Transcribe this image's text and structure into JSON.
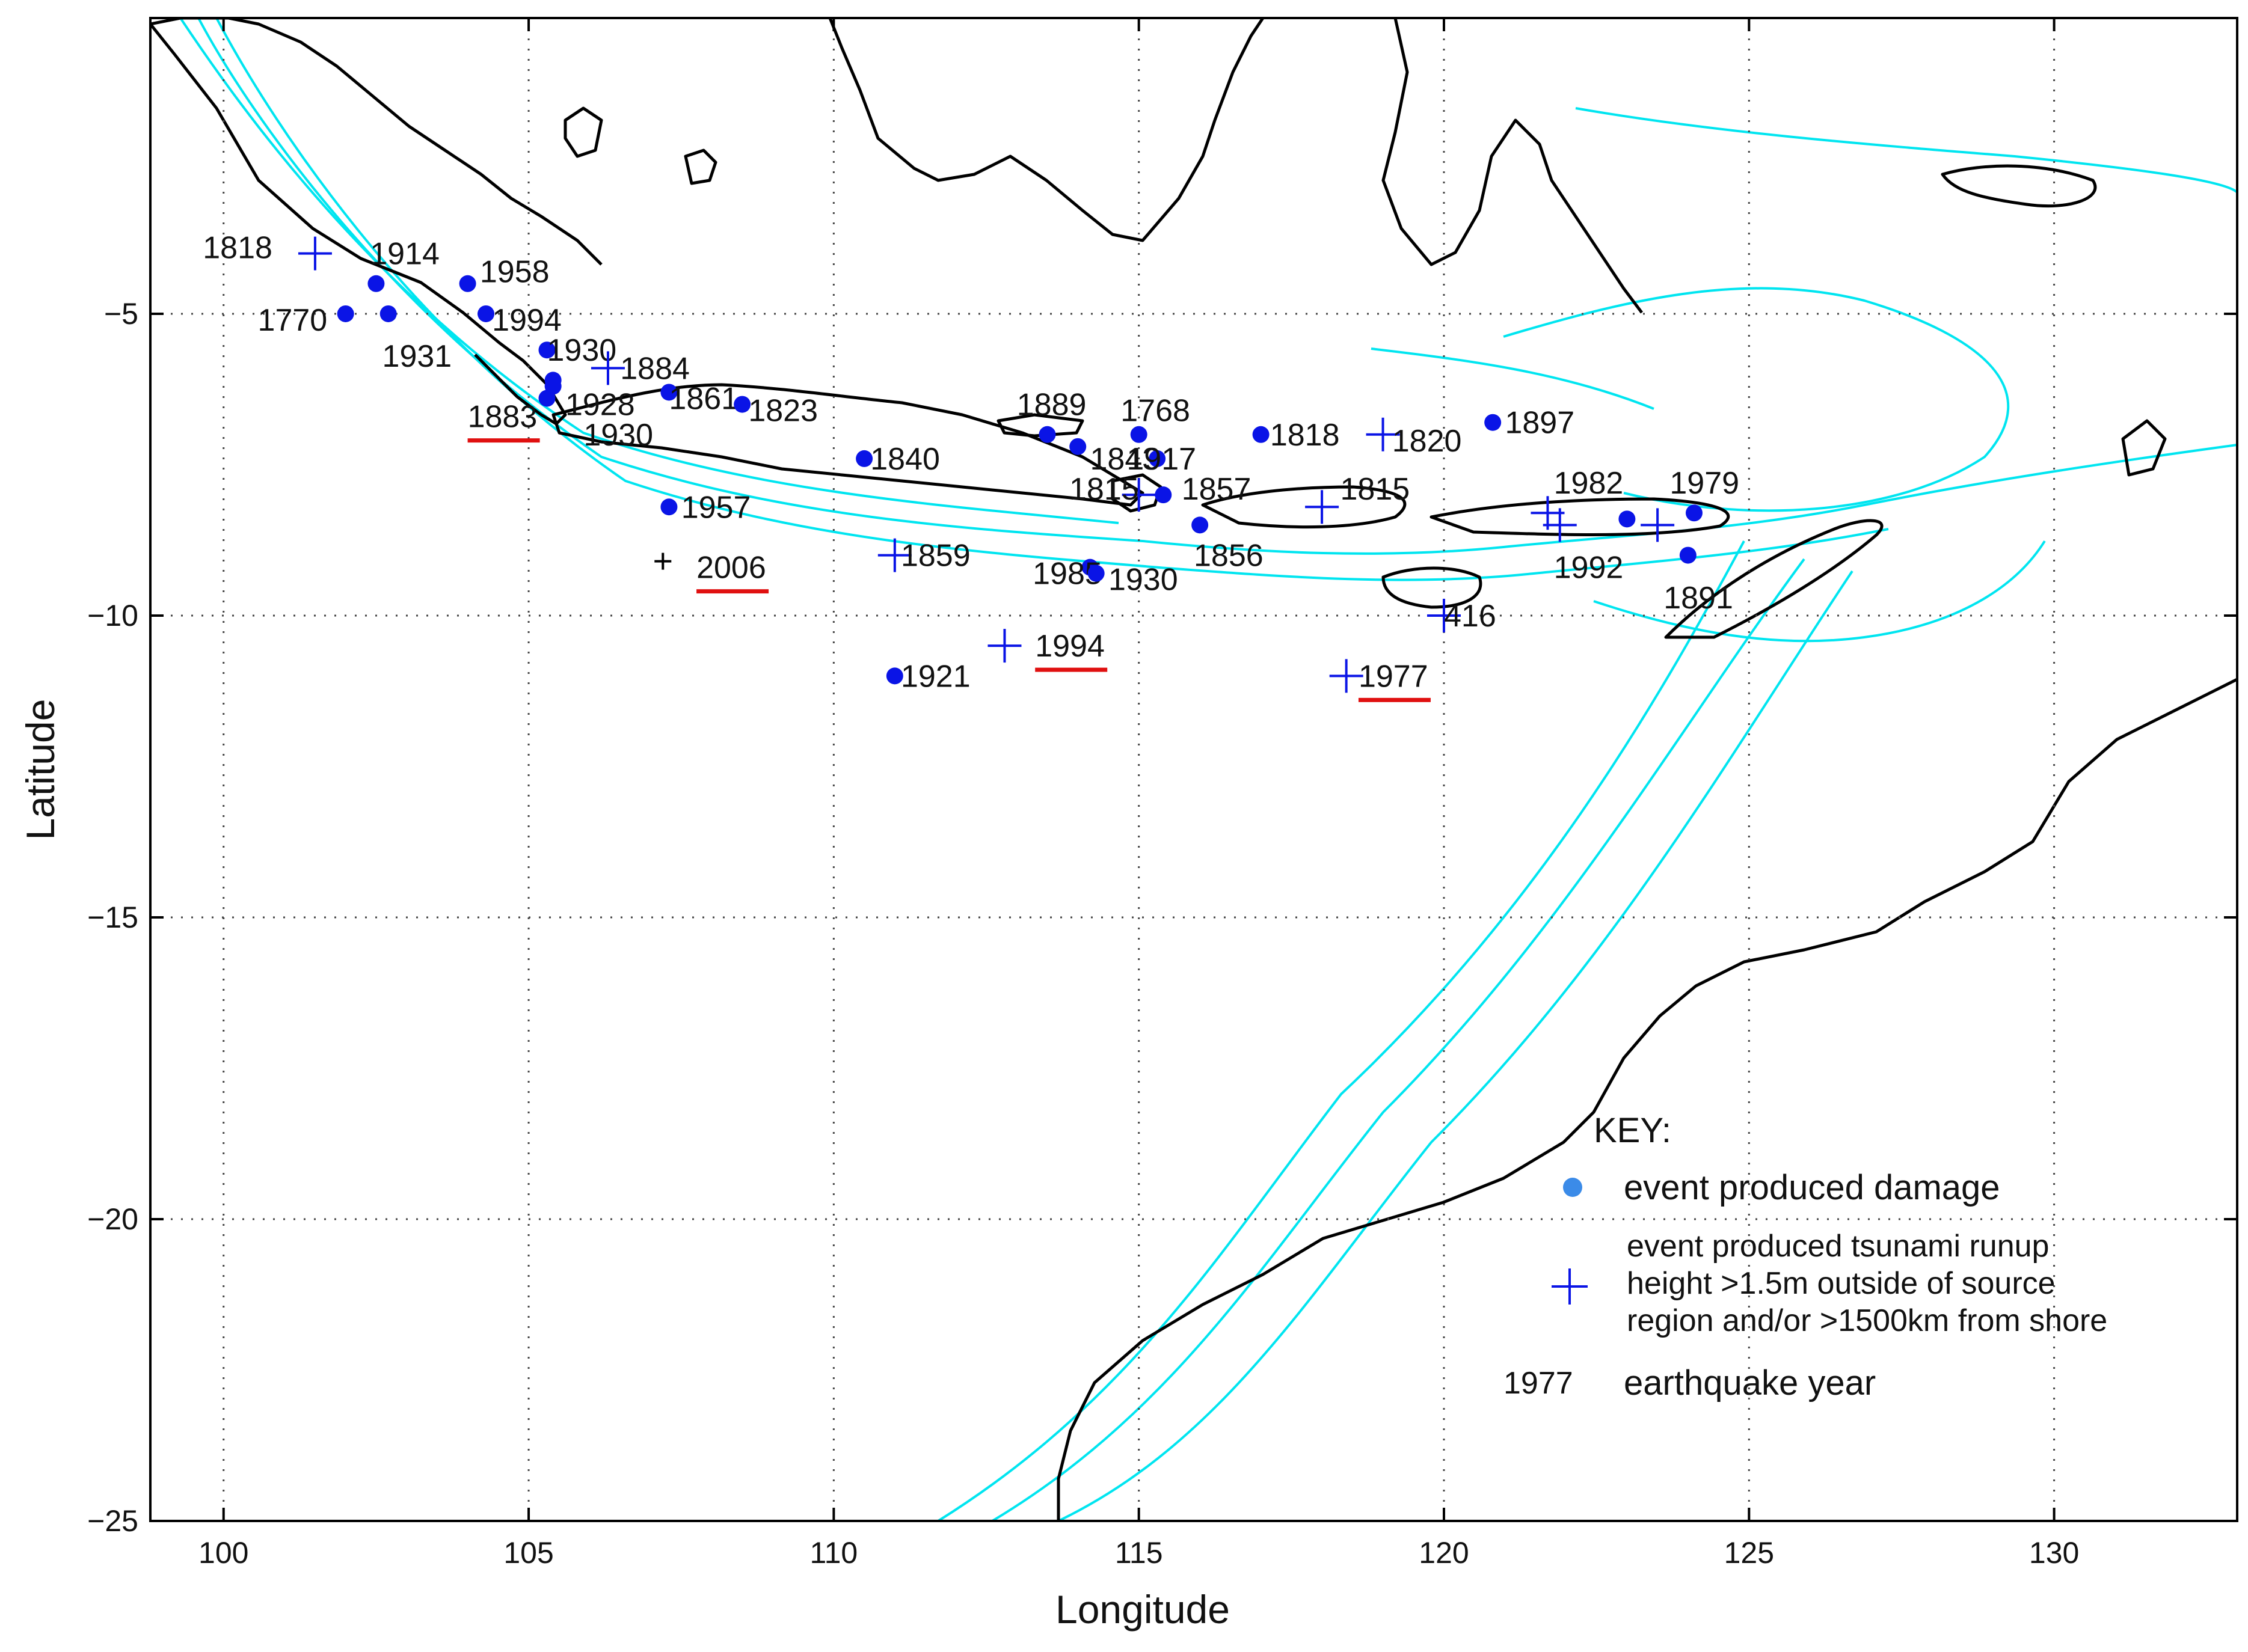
{
  "map": {
    "xlabel": "Longitude",
    "ylabel": "Latitude",
    "xlim": [
      98.8,
      133
    ],
    "ylim": [
      -25,
      -0.1
    ],
    "x_ticks": [
      100,
      105,
      110,
      115,
      120,
      125,
      130
    ],
    "y_ticks": [
      -5,
      -10,
      -15,
      -20,
      -25
    ],
    "x_tick_labels": [
      "100",
      "105",
      "110",
      "115",
      "120",
      "125",
      "130"
    ],
    "y_tick_labels": [
      "−5",
      "−10",
      "−15",
      "−20",
      "−25"
    ],
    "grid": true,
    "colors": {
      "coast": "#000000",
      "bathymetry": "#00e5f0",
      "event": "#0a14e6",
      "underline": "#e01010",
      "key_dot": "#3b8be8",
      "grid": "#444444"
    }
  },
  "events": [
    {
      "year": "1818",
      "lon": 101.5,
      "lat": -4.0,
      "type": "cross",
      "lx": 100.8,
      "ly": -3.9,
      "anchor": "end"
    },
    {
      "year": "1914",
      "lon": 102.5,
      "lat": -4.5,
      "type": "dot",
      "lx": 102.4,
      "ly": -4.0,
      "anchor": "start"
    },
    {
      "year": "1770",
      "lon": 102.0,
      "lat": -5.0,
      "type": "dot",
      "lx": 101.7,
      "ly": -5.1,
      "anchor": "end"
    },
    {
      "year": "1931",
      "lon": 102.7,
      "lat": -5.0,
      "type": "dot",
      "lx": 102.6,
      "ly": -5.7,
      "anchor": "start"
    },
    {
      "year": "1958",
      "lon": 104.0,
      "lat": -4.5,
      "type": "dot",
      "lx": 104.2,
      "ly": -4.3,
      "anchor": "start"
    },
    {
      "year": "1994",
      "lon": 104.3,
      "lat": -5.0,
      "type": "dot",
      "lx": 104.4,
      "ly": -5.1,
      "anchor": "start"
    },
    {
      "year": "1930",
      "lon": 105.3,
      "lat": -5.6,
      "type": "dot",
      "lx": 105.3,
      "ly": -5.6,
      "anchor": "start"
    },
    {
      "year": "1884",
      "lon": 106.3,
      "lat": -5.9,
      "type": "cross",
      "lx": 106.5,
      "ly": -5.9,
      "anchor": "start"
    },
    {
      "year": "1928",
      "lon": 105.4,
      "lat": -6.1,
      "type": "dot",
      "lx": 105.6,
      "ly": -6.5,
      "anchor": "start"
    },
    {
      "year": "1883",
      "lon": 105.4,
      "lat": -6.2,
      "type": "dot",
      "lx": 104.0,
      "ly": -6.7,
      "anchor": "start",
      "underline": true
    },
    {
      "year": "1930",
      "lon": 105.3,
      "lat": -6.4,
      "type": "dot",
      "lx": 105.9,
      "ly": -7.0,
      "anchor": "start"
    },
    {
      "year": "1861",
      "lon": 107.3,
      "lat": -6.3,
      "type": "dot",
      "lx": 107.3,
      "ly": -6.4,
      "anchor": "start"
    },
    {
      "year": "1823",
      "lon": 108.5,
      "lat": -6.5,
      "type": "dot",
      "lx": 108.6,
      "ly": -6.6,
      "anchor": "start"
    },
    {
      "year": "1957",
      "lon": 107.3,
      "lat": -8.2,
      "type": "dot",
      "lx": 107.5,
      "ly": -8.2,
      "anchor": "start"
    },
    {
      "year": "2006",
      "lon": 107.2,
      "lat": -9.1,
      "type": "plus",
      "lx": 107.75,
      "ly": -9.2,
      "anchor": "start",
      "underline": true
    },
    {
      "year": "1840",
      "lon": 110.5,
      "lat": -7.4,
      "type": "dot",
      "lx": 110.6,
      "ly": -7.4,
      "anchor": "start"
    },
    {
      "year": "1859",
      "lon": 111.0,
      "lat": -9.0,
      "type": "cross",
      "lx": 111.1,
      "ly": -9.0,
      "anchor": "start"
    },
    {
      "year": "1921",
      "lon": 111.0,
      "lat": -11.0,
      "type": "dot",
      "lx": 111.1,
      "ly": -11.0,
      "anchor": "start"
    },
    {
      "year": "1994",
      "lon": 112.8,
      "lat": -10.5,
      "type": "cross",
      "lx": 113.3,
      "ly": -10.5,
      "anchor": "start",
      "underline": true
    },
    {
      "year": "1889",
      "lon": 113.5,
      "lat": -7.0,
      "type": "dot",
      "lx": 113.0,
      "ly": -6.5,
      "anchor": "start"
    },
    {
      "year": "1843",
      "lon": 114.0,
      "lat": -7.2,
      "type": "dot",
      "lx": 114.2,
      "ly": -7.4,
      "anchor": "start"
    },
    {
      "year": "1768",
      "lon": 115.0,
      "lat": -7.0,
      "type": "dot",
      "lx": 114.7,
      "ly": -6.6,
      "anchor": "start"
    },
    {
      "year": "1917",
      "lon": 115.3,
      "lat": -7.4,
      "type": "dot",
      "lx": 114.8,
      "ly": -7.4,
      "anchor": "start"
    },
    {
      "year": "1815",
      "lon": 115.0,
      "lat": -8.0,
      "type": "cross",
      "lx": 115.0,
      "ly": -7.9,
      "anchor": "end"
    },
    {
      "year": "1857",
      "lon": 115.4,
      "lat": -8.0,
      "type": "dot",
      "lx": 115.7,
      "ly": -7.9,
      "anchor": "start"
    },
    {
      "year": "1856",
      "lon": 116.0,
      "lat": -8.5,
      "type": "dot",
      "lx": 115.9,
      "ly": -9.0,
      "anchor": "start"
    },
    {
      "year": "1985",
      "lon": 114.2,
      "lat": -9.2,
      "type": "dot",
      "lx": 114.4,
      "ly": -9.3,
      "anchor": "end"
    },
    {
      "year": "1930",
      "lon": 114.3,
      "lat": -9.3,
      "type": "dot",
      "lx": 114.5,
      "ly": -9.4,
      "anchor": "start"
    },
    {
      "year": "1818",
      "lon": 117.0,
      "lat": -7.0,
      "type": "dot",
      "lx": 117.15,
      "ly": -7.0,
      "anchor": "start"
    },
    {
      "year": "1815",
      "lon": 118.0,
      "lat": -8.2,
      "type": "cross",
      "lx": 118.3,
      "ly": -7.9,
      "anchor": "start"
    },
    {
      "year": "1820",
      "lon": 119.0,
      "lat": -7.0,
      "type": "cross",
      "lx": 119.15,
      "ly": -7.1,
      "anchor": "start"
    },
    {
      "year": "1897",
      "lon": 120.8,
      "lat": -6.8,
      "type": "dot",
      "lx": 121.0,
      "ly": -6.8,
      "anchor": "start"
    },
    {
      "year": "1982",
      "lon": 121.7,
      "lat": -8.3,
      "type": "cross",
      "lx": 121.8,
      "ly": -7.8,
      "anchor": "start"
    },
    {
      "year": "1992",
      "lon": 121.9,
      "lat": -8.5,
      "type": "cross",
      "lx": 121.8,
      "ly": -9.2,
      "anchor": "start"
    },
    {
      "year": "1979",
      "lon": 124.1,
      "lat": -8.3,
      "type": "dot",
      "lx": 123.7,
      "ly": -7.8,
      "anchor": "start"
    },
    {
      "year": "",
      "lon": 123.0,
      "lat": -8.4,
      "type": "dot"
    },
    {
      "year": "",
      "lon": 123.5,
      "lat": -8.5,
      "type": "cross"
    },
    {
      "year": "1891",
      "lon": 124.0,
      "lat": -9.0,
      "type": "dot",
      "lx": 123.6,
      "ly": -9.7,
      "anchor": "start"
    },
    {
      "year": "416",
      "lon": 120.0,
      "lat": -10.0,
      "type": "cross",
      "lx": 120.0,
      "ly": -10.0,
      "anchor": "start"
    },
    {
      "year": "1977",
      "lon": 118.4,
      "lat": -11.0,
      "type": "cross",
      "lx": 118.6,
      "ly": -11.0,
      "anchor": "start",
      "underline": true
    }
  ],
  "key": {
    "title": "KEY:",
    "damage": "event produced damage",
    "tsunami_line1": "event produced tsunami runup",
    "tsunami_line2": "height >1.5m outside of source",
    "tsunami_line3": "region and/or >1500km from shore",
    "year_sample": "1977",
    "year_label": "earthquake year"
  }
}
